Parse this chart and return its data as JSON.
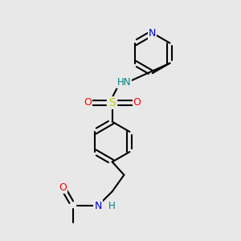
{
  "background_color": "#e8e8e8",
  "atom_colors": {
    "C": "#000000",
    "N": "#0000cc",
    "O": "#ff0000",
    "S": "#cccc00",
    "H_label": "#008080"
  },
  "figsize": [
    3.0,
    3.0
  ],
  "dpi": 100
}
